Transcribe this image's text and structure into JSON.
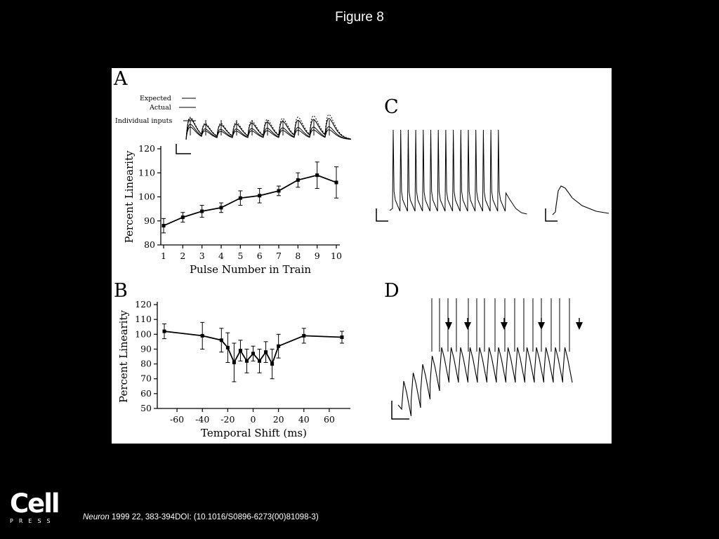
{
  "figure_title": "Figure 8",
  "panels": {
    "a": "A",
    "b": "B",
    "c": "C",
    "d": "D"
  },
  "legend_a": {
    "expected": "Expected",
    "actual": "Actual",
    "individual": "Individual inputs"
  },
  "logo": {
    "word": "Cell",
    "sub": "PRESS"
  },
  "citation": {
    "journal": "Neuron",
    "rest": " 1999 22, 383-394DOI: (10.1016/S0896-6273(00)81098-3)"
  },
  "chart_data": [
    {
      "panel": "A",
      "type": "line",
      "xlabel": "Pulse Number in Train",
      "ylabel": "Percent Linearity",
      "x": [
        1,
        2,
        3,
        4,
        5,
        6,
        7,
        8,
        9,
        10
      ],
      "y": [
        88,
        91.5,
        94,
        95.5,
        99.5,
        100.5,
        102.5,
        107,
        109,
        106
      ],
      "err": [
        3,
        2,
        2.5,
        2,
        3,
        3,
        2,
        3,
        5.5,
        6.5
      ],
      "xticks": [
        1,
        2,
        3,
        4,
        5,
        6,
        7,
        8,
        9,
        10
      ],
      "yticks": [
        80,
        90,
        100,
        110,
        120
      ],
      "xlim": [
        1,
        10
      ],
      "ylim": [
        80,
        120
      ]
    },
    {
      "panel": "B",
      "type": "line",
      "xlabel": "Temporal Shift (ms)",
      "ylabel": "Percent Linearity",
      "x": [
        -70,
        -40,
        -25,
        -20,
        -15,
        -10,
        -5,
        0,
        5,
        10,
        15,
        20,
        40,
        70
      ],
      "y": [
        102,
        99,
        96,
        91,
        81,
        89,
        82,
        87,
        82,
        88,
        80,
        92,
        99,
        98
      ],
      "err": [
        5,
        9,
        8,
        10,
        13,
        7,
        8,
        5,
        8,
        7,
        10,
        8,
        5,
        4
      ],
      "xticks": [
        -60,
        -40,
        -20,
        0,
        20,
        40,
        60
      ],
      "yticks": [
        50,
        60,
        70,
        80,
        90,
        100,
        110,
        120
      ],
      "xlim": [
        -70,
        70
      ],
      "ylim": [
        50,
        120
      ]
    }
  ]
}
